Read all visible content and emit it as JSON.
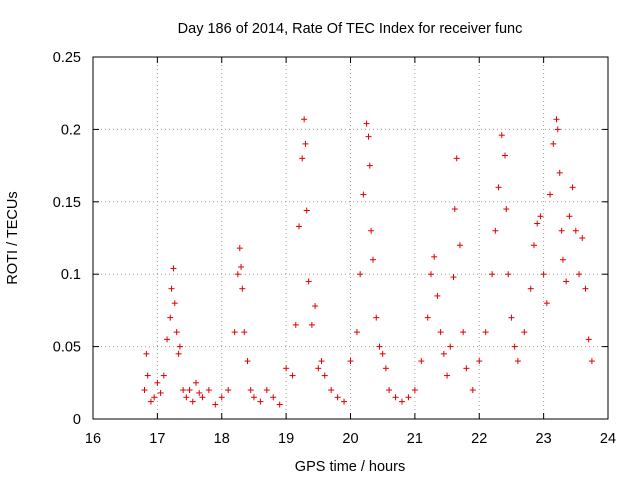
{
  "chart_data": {
    "type": "scatter",
    "title": "Day 186 of 2014, Rate Of TEC Index for receiver func",
    "xlabel": "GPS time / hours",
    "ylabel": "ROTI / TECUs",
    "xlim": [
      16,
      24
    ],
    "ylim": [
      0,
      0.25
    ],
    "xticks": [
      "16",
      "17",
      "18",
      "19",
      "20",
      "21",
      "22",
      "23",
      "24"
    ],
    "yticks": [
      "0",
      "0.05",
      "0.1",
      "0.15",
      "0.2",
      "0.25"
    ],
    "grid": true,
    "marker": "+",
    "color": "#e00000",
    "series": [
      {
        "name": "ROTI",
        "x": [
          16.8,
          16.83,
          16.85,
          16.9,
          16.95,
          17.0,
          17.05,
          17.1,
          17.15,
          17.2,
          17.22,
          17.25,
          17.27,
          17.3,
          17.33,
          17.35,
          17.4,
          17.45,
          17.5,
          17.55,
          17.6,
          17.65,
          17.7,
          17.8,
          17.9,
          18.0,
          18.1,
          18.2,
          18.25,
          18.28,
          18.3,
          18.32,
          18.35,
          18.4,
          18.45,
          18.5,
          18.6,
          18.7,
          18.8,
          18.9,
          19.0,
          19.1,
          19.15,
          19.2,
          19.25,
          19.28,
          19.3,
          19.32,
          19.35,
          19.4,
          19.45,
          19.5,
          19.55,
          19.6,
          19.7,
          19.8,
          19.9,
          20.0,
          20.1,
          20.15,
          20.2,
          20.25,
          20.28,
          20.3,
          20.32,
          20.35,
          20.4,
          20.45,
          20.5,
          20.55,
          20.6,
          20.7,
          20.8,
          20.9,
          21.0,
          21.1,
          21.2,
          21.25,
          21.3,
          21.35,
          21.4,
          21.45,
          21.5,
          21.55,
          21.6,
          21.62,
          21.65,
          21.7,
          21.75,
          21.8,
          21.9,
          22.0,
          22.1,
          22.2,
          22.25,
          22.3,
          22.35,
          22.4,
          22.42,
          22.45,
          22.5,
          22.55,
          22.6,
          22.7,
          22.8,
          22.85,
          22.9,
          22.95,
          23.0,
          23.05,
          23.1,
          23.15,
          23.2,
          23.22,
          23.25,
          23.28,
          23.3,
          23.35,
          23.4,
          23.45,
          23.5,
          23.55,
          23.6,
          23.65,
          23.7,
          23.75
        ],
        "y": [
          0.02,
          0.045,
          0.03,
          0.012,
          0.015,
          0.025,
          0.018,
          0.03,
          0.055,
          0.07,
          0.09,
          0.104,
          0.08,
          0.06,
          0.045,
          0.05,
          0.02,
          0.015,
          0.02,
          0.012,
          0.025,
          0.018,
          0.015,
          0.02,
          0.01,
          0.015,
          0.02,
          0.06,
          0.1,
          0.118,
          0.105,
          0.09,
          0.06,
          0.04,
          0.02,
          0.015,
          0.012,
          0.02,
          0.015,
          0.01,
          0.035,
          0.03,
          0.065,
          0.133,
          0.18,
          0.207,
          0.19,
          0.144,
          0.095,
          0.065,
          0.078,
          0.035,
          0.04,
          0.03,
          0.02,
          0.015,
          0.012,
          0.04,
          0.06,
          0.1,
          0.155,
          0.204,
          0.195,
          0.175,
          0.13,
          0.11,
          0.07,
          0.05,
          0.045,
          0.035,
          0.02,
          0.015,
          0.012,
          0.015,
          0.02,
          0.04,
          0.07,
          0.1,
          0.112,
          0.085,
          0.06,
          0.045,
          0.03,
          0.05,
          0.098,
          0.145,
          0.18,
          0.12,
          0.06,
          0.035,
          0.02,
          0.04,
          0.06,
          0.1,
          0.13,
          0.16,
          0.196,
          0.182,
          0.145,
          0.1,
          0.07,
          0.05,
          0.04,
          0.06,
          0.09,
          0.12,
          0.135,
          0.14,
          0.1,
          0.08,
          0.155,
          0.19,
          0.207,
          0.2,
          0.17,
          0.13,
          0.11,
          0.095,
          0.14,
          0.16,
          0.13,
          0.1,
          0.125,
          0.09,
          0.055,
          0.04
        ]
      }
    ]
  }
}
